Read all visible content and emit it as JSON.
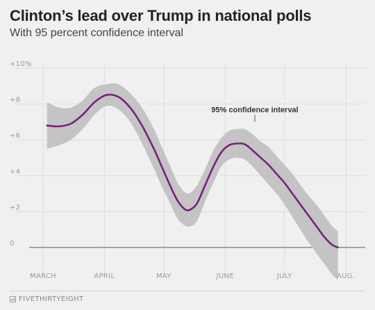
{
  "header": {
    "title": "Clinton’s lead over Trump in national polls",
    "subtitle": "With 95 percent confidence interval"
  },
  "footer": {
    "brand": "FIVETHIRTYEIGHT"
  },
  "colors": {
    "line": "#7b1f7e",
    "band": "#c4c4c4",
    "grid": "#dcdcdc",
    "zero": "#555555",
    "background": "#f0f0f0"
  },
  "chart_data": {
    "type": "line",
    "title": "Clinton’s lead over Trump in national polls",
    "subtitle": "With 95 percent confidence interval",
    "xlabel": "",
    "ylabel": "",
    "x_ticks": [
      {
        "label": "MARCH",
        "day": 0
      },
      {
        "label": "APRIL",
        "day": 31
      },
      {
        "label": "MAY",
        "day": 61
      },
      {
        "label": "JUNE",
        "day": 92
      },
      {
        "label": "JULY",
        "day": 122
      },
      {
        "label": "AUG.",
        "day": 153
      }
    ],
    "y_ticks": [
      {
        "label": "0",
        "value": 0
      },
      {
        "label": "+2",
        "value": 2
      },
      {
        "label": "+4",
        "value": 4
      },
      {
        "label": "+6",
        "value": 6
      },
      {
        "label": "+8",
        "value": 8
      },
      {
        "label": "+10%",
        "value": 10
      }
    ],
    "ylim": [
      -1.7,
      10.3
    ],
    "grid": true,
    "annotation": {
      "text": "95% confidence interval",
      "day": 107,
      "value": 7.0
    },
    "series": [
      {
        "x": [
          2,
          8,
          14,
          20,
          26,
          32,
          38,
          44,
          50,
          56,
          60,
          64,
          68,
          72,
          75,
          78,
          82,
          86,
          90,
          94,
          98,
          102,
          106,
          110,
          114,
          118,
          122,
          126,
          130,
          134,
          138,
          142,
          146,
          149
        ],
        "y": [
          6.8,
          6.75,
          6.9,
          7.4,
          8.1,
          8.5,
          8.4,
          7.8,
          6.8,
          5.5,
          4.5,
          3.5,
          2.6,
          2.1,
          2.15,
          2.5,
          3.5,
          4.5,
          5.3,
          5.7,
          5.8,
          5.75,
          5.4,
          5.0,
          4.6,
          4.1,
          3.6,
          3.0,
          2.4,
          1.8,
          1.2,
          0.6,
          0.15,
          0.0
        ],
        "lower": [
          5.5,
          5.7,
          6.0,
          6.6,
          7.4,
          7.9,
          7.7,
          7.0,
          5.8,
          4.4,
          3.4,
          2.5,
          1.6,
          1.2,
          1.2,
          1.5,
          2.6,
          3.6,
          4.5,
          4.9,
          5.0,
          4.9,
          4.5,
          4.0,
          3.5,
          3.0,
          2.4,
          1.7,
          1.0,
          0.3,
          -0.3,
          -0.9,
          -1.5,
          -1.8
        ],
        "upper": [
          8.1,
          7.8,
          7.8,
          8.2,
          8.9,
          9.1,
          9.1,
          8.6,
          7.8,
          6.6,
          5.6,
          4.6,
          3.6,
          3.05,
          3.1,
          3.5,
          4.4,
          5.4,
          6.1,
          6.5,
          6.6,
          6.6,
          6.3,
          5.9,
          5.6,
          5.1,
          4.6,
          4.1,
          3.5,
          2.9,
          2.4,
          1.8,
          1.2,
          0.9
        ]
      }
    ]
  }
}
